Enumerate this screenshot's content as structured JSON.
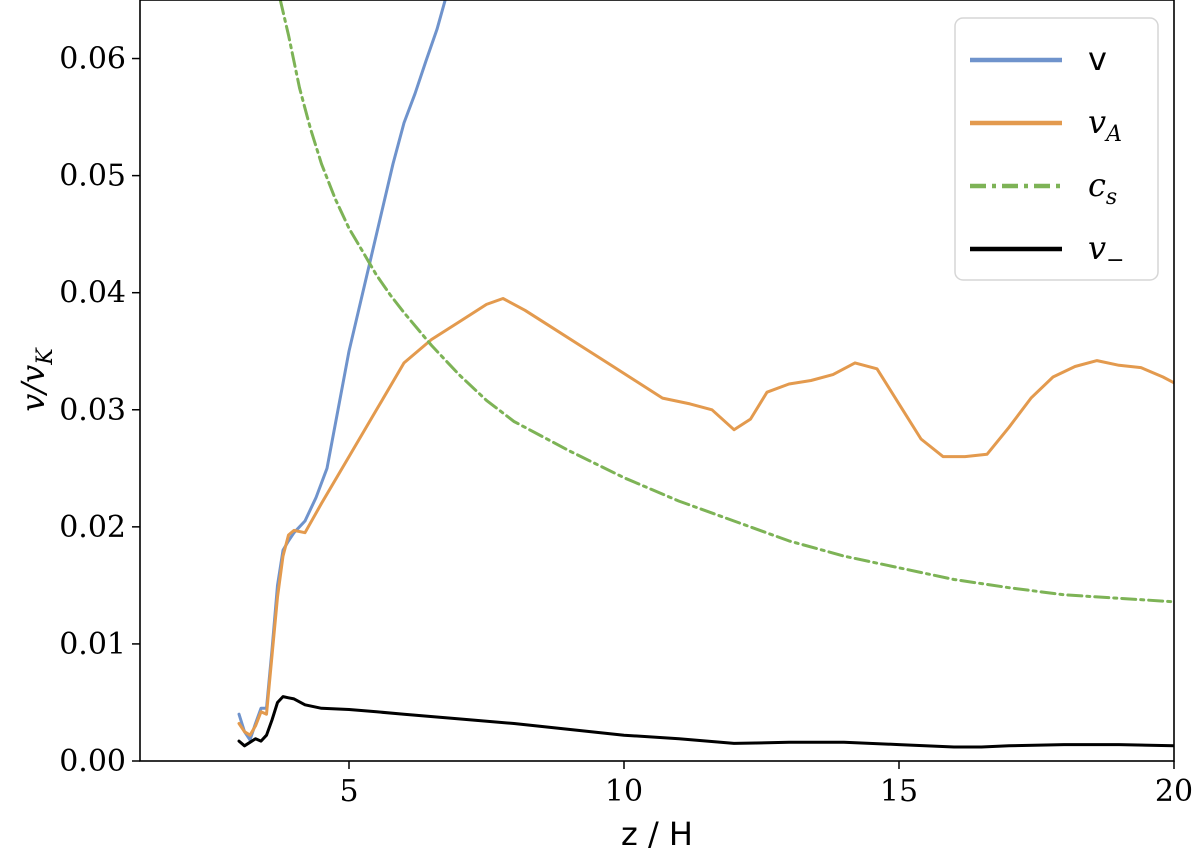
{
  "chart_data": {
    "type": "line",
    "xlabel": "z / H",
    "ylabel": "v/v_K",
    "xlim": [
      1.2,
      20
    ],
    "ylim": [
      0,
      0.065
    ],
    "x_ticks": [
      5,
      10,
      15,
      20
    ],
    "x_tick_labels": [
      "5",
      "10",
      "15",
      "20"
    ],
    "y_ticks": [
      0,
      0.01,
      0.02,
      0.03,
      0.04,
      0.05,
      0.06
    ],
    "y_tick_labels": [
      "0.00",
      "0.01",
      "0.02",
      "0.03",
      "0.04",
      "0.05",
      "0.06"
    ],
    "grid": false,
    "legend_position": "top-right",
    "series": [
      {
        "name": "v",
        "label_main": "v",
        "label_sub": "",
        "color": "#6f93cc",
        "dash": "solid",
        "x": [
          3.0,
          3.1,
          3.2,
          3.3,
          3.4,
          3.5,
          3.6,
          3.7,
          3.8,
          3.9,
          4.0,
          4.2,
          4.4,
          4.6,
          4.8,
          5.0,
          5.2,
          5.4,
          5.6,
          5.8,
          6.0,
          6.2,
          6.4,
          6.6,
          6.75
        ],
        "y": [
          0.004,
          0.0025,
          0.0018,
          0.0032,
          0.0045,
          0.0045,
          0.0095,
          0.015,
          0.018,
          0.0188,
          0.0195,
          0.0205,
          0.0225,
          0.025,
          0.03,
          0.035,
          0.039,
          0.043,
          0.047,
          0.051,
          0.0545,
          0.057,
          0.0598,
          0.0625,
          0.065
        ]
      },
      {
        "name": "v_A",
        "label_main": "v",
        "label_sub": "A",
        "color": "#e39a4e",
        "dash": "solid",
        "x": [
          3.0,
          3.1,
          3.2,
          3.3,
          3.4,
          3.5,
          3.6,
          3.7,
          3.8,
          3.9,
          4.0,
          4.2,
          4.5,
          5.0,
          5.5,
          6.0,
          6.5,
          7.0,
          7.5,
          7.8,
          8.2,
          8.7,
          9.2,
          9.7,
          10.2,
          10.7,
          11.2,
          11.6,
          12.0,
          12.3,
          12.6,
          13.0,
          13.4,
          13.8,
          14.2,
          14.6,
          15.0,
          15.4,
          15.8,
          16.2,
          16.6,
          17.0,
          17.4,
          17.8,
          18.2,
          18.6,
          19.0,
          19.4,
          19.8,
          20.0
        ],
        "y": [
          0.0032,
          0.0025,
          0.0022,
          0.003,
          0.0042,
          0.004,
          0.009,
          0.014,
          0.0175,
          0.0193,
          0.0197,
          0.0195,
          0.022,
          0.026,
          0.03,
          0.034,
          0.036,
          0.0375,
          0.039,
          0.0395,
          0.0385,
          0.037,
          0.0355,
          0.034,
          0.0325,
          0.031,
          0.0305,
          0.03,
          0.0283,
          0.0292,
          0.0315,
          0.0322,
          0.0325,
          0.033,
          0.034,
          0.0335,
          0.0305,
          0.0275,
          0.026,
          0.026,
          0.0262,
          0.0285,
          0.031,
          0.0328,
          0.0337,
          0.0342,
          0.0338,
          0.0336,
          0.0328,
          0.0323
        ]
      },
      {
        "name": "c_s",
        "label_main": "c",
        "label_sub": "s",
        "color": "#7db356",
        "dash": "dashdot",
        "x": [
          3.75,
          3.9,
          4.1,
          4.3,
          4.5,
          4.75,
          5.0,
          5.25,
          5.5,
          5.75,
          6.0,
          6.5,
          7.0,
          7.5,
          8.0,
          9.0,
          10.0,
          11.0,
          12.0,
          13.0,
          14.0,
          15.0,
          16.0,
          17.0,
          18.0,
          19.0,
          20.0
        ],
        "y": [
          0.065,
          0.062,
          0.0575,
          0.054,
          0.051,
          0.048,
          0.0455,
          0.0435,
          0.0415,
          0.0398,
          0.0383,
          0.0355,
          0.033,
          0.0308,
          0.029,
          0.0265,
          0.0242,
          0.0222,
          0.0205,
          0.0188,
          0.0175,
          0.0165,
          0.0155,
          0.0148,
          0.0142,
          0.0139,
          0.0136
        ]
      },
      {
        "name": "v_-",
        "label_main": "v",
        "label_sub": "−",
        "color": "#000000",
        "dash": "solid",
        "x": [
          3.0,
          3.1,
          3.2,
          3.3,
          3.4,
          3.5,
          3.6,
          3.7,
          3.8,
          3.9,
          4.0,
          4.2,
          4.5,
          5.0,
          5.5,
          6.0,
          7.0,
          8.0,
          9.0,
          10.0,
          11.0,
          12.0,
          13.0,
          14.0,
          15.0,
          16.0,
          16.5,
          17.0,
          18.0,
          19.0,
          20.0
        ],
        "y": [
          0.0017,
          0.0013,
          0.0016,
          0.0019,
          0.0017,
          0.0022,
          0.0035,
          0.005,
          0.0055,
          0.0054,
          0.0053,
          0.0048,
          0.0045,
          0.0044,
          0.0042,
          0.004,
          0.0036,
          0.0032,
          0.0027,
          0.0022,
          0.0019,
          0.0015,
          0.0016,
          0.0016,
          0.0014,
          0.0012,
          0.0012,
          0.0013,
          0.0014,
          0.0014,
          0.0013
        ]
      }
    ]
  }
}
